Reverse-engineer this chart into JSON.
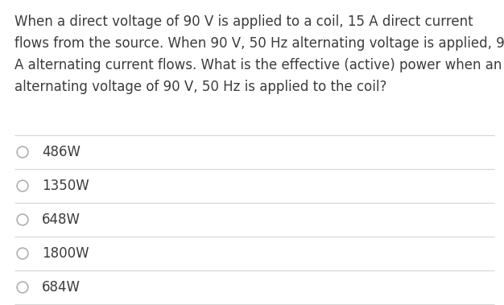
{
  "question_text_lines": [
    "When a direct voltage of 90 V is applied to a coil, 15 A direct current",
    "flows from the source. When 90 V, 50 Hz alternating voltage is applied, 9",
    "A alternating current flows. What is the effective (active) power when an",
    "alternating voltage of 90 V, 50 Hz is applied to the coil?"
  ],
  "options": [
    "486W",
    "1350W",
    "648W",
    "1800W",
    "684W"
  ],
  "background_color": "#ffffff",
  "text_color": "#3c3c3c",
  "option_text_color": "#3c3c3c",
  "separator_color": "#d8d8d8",
  "circle_edge_color": "#b0b0b0",
  "question_fontsize": 12.0,
  "option_fontsize": 12.0,
  "fig_width": 6.26,
  "fig_height": 3.79,
  "dpi": 100
}
